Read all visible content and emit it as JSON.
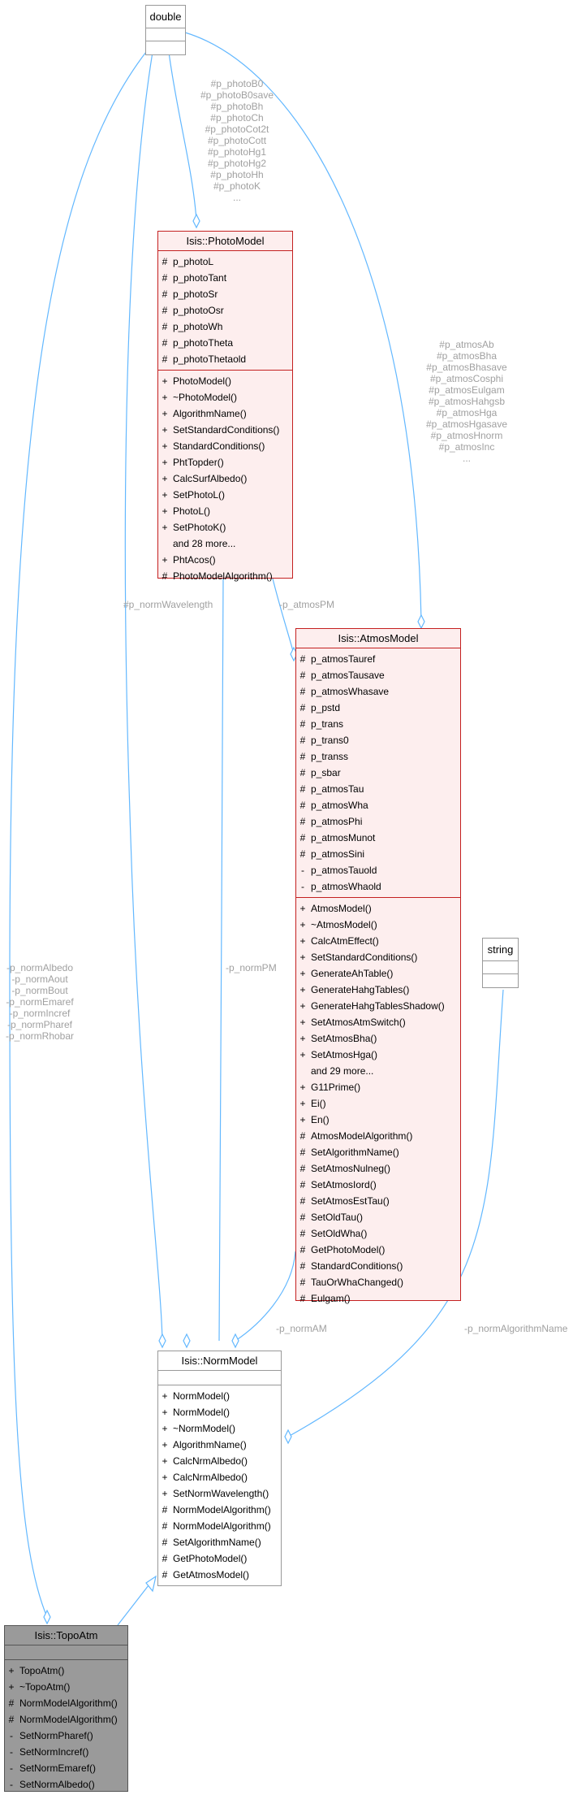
{
  "classes": {
    "double": {
      "name": "double"
    },
    "string": {
      "name": "string"
    },
    "photo": {
      "name": "Isis::PhotoModel",
      "attributes": [
        {
          "v": "#",
          "n": "p_photoL"
        },
        {
          "v": "#",
          "n": "p_photoTant"
        },
        {
          "v": "#",
          "n": "p_photoSr"
        },
        {
          "v": "#",
          "n": "p_photoOsr"
        },
        {
          "v": "#",
          "n": "p_photoWh"
        },
        {
          "v": "#",
          "n": "p_photoTheta"
        },
        {
          "v": "#",
          "n": "p_photoThetaold"
        }
      ],
      "methods": [
        {
          "v": "+",
          "n": "PhotoModel()"
        },
        {
          "v": "+",
          "n": "~PhotoModel()"
        },
        {
          "v": "+",
          "n": "AlgorithmName()"
        },
        {
          "v": "+",
          "n": "SetStandardConditions()"
        },
        {
          "v": "+",
          "n": "StandardConditions()"
        },
        {
          "v": "+",
          "n": "PhtTopder()"
        },
        {
          "v": "+",
          "n": "CalcSurfAlbedo()"
        },
        {
          "v": "+",
          "n": "SetPhotoL()"
        },
        {
          "v": "+",
          "n": "PhotoL()"
        },
        {
          "v": "+",
          "n": "SetPhotoK()"
        },
        {
          "v": "",
          "n": "and 28 more..."
        },
        {
          "v": "+",
          "n": "PhtAcos()"
        },
        {
          "v": "#",
          "n": "PhotoModelAlgorithm()"
        }
      ]
    },
    "atmos": {
      "name": "Isis::AtmosModel",
      "attributes": [
        {
          "v": "#",
          "n": "p_atmosTauref"
        },
        {
          "v": "#",
          "n": "p_atmosTausave"
        },
        {
          "v": "#",
          "n": "p_atmosWhasave"
        },
        {
          "v": "#",
          "n": "p_pstd"
        },
        {
          "v": "#",
          "n": "p_trans"
        },
        {
          "v": "#",
          "n": "p_trans0"
        },
        {
          "v": "#",
          "n": "p_transs"
        },
        {
          "v": "#",
          "n": "p_sbar"
        },
        {
          "v": "#",
          "n": "p_atmosTau"
        },
        {
          "v": "#",
          "n": "p_atmosWha"
        },
        {
          "v": "#",
          "n": "p_atmosPhi"
        },
        {
          "v": "#",
          "n": "p_atmosMunot"
        },
        {
          "v": "#",
          "n": "p_atmosSini"
        },
        {
          "v": "-",
          "n": "p_atmosTauold"
        },
        {
          "v": "-",
          "n": "p_atmosWhaold"
        }
      ],
      "methods": [
        {
          "v": "+",
          "n": "AtmosModel()"
        },
        {
          "v": "+",
          "n": "~AtmosModel()"
        },
        {
          "v": "+",
          "n": "CalcAtmEffect()"
        },
        {
          "v": "+",
          "n": "SetStandardConditions()"
        },
        {
          "v": "+",
          "n": "GenerateAhTable()"
        },
        {
          "v": "+",
          "n": "GenerateHahgTables()"
        },
        {
          "v": "+",
          "n": "GenerateHahgTablesShadow()"
        },
        {
          "v": "+",
          "n": "SetAtmosAtmSwitch()"
        },
        {
          "v": "+",
          "n": "SetAtmosBha()"
        },
        {
          "v": "+",
          "n": "SetAtmosHga()"
        },
        {
          "v": "",
          "n": "and 29 more..."
        },
        {
          "v": "+",
          "n": "G11Prime()"
        },
        {
          "v": "+",
          "n": "Ei()"
        },
        {
          "v": "+",
          "n": "En()"
        },
        {
          "v": "#",
          "n": "AtmosModelAlgorithm()"
        },
        {
          "v": "#",
          "n": "SetAlgorithmName()"
        },
        {
          "v": "#",
          "n": "SetAtmosNulneg()"
        },
        {
          "v": "#",
          "n": "SetAtmosIord()"
        },
        {
          "v": "#",
          "n": "SetAtmosEstTau()"
        },
        {
          "v": "#",
          "n": "SetOldTau()"
        },
        {
          "v": "#",
          "n": "SetOldWha()"
        },
        {
          "v": "#",
          "n": "GetPhotoModel()"
        },
        {
          "v": "#",
          "n": "StandardConditions()"
        },
        {
          "v": "#",
          "n": "TauOrWhaChanged()"
        },
        {
          "v": "#",
          "n": "Eulgam()"
        }
      ]
    },
    "norm": {
      "name": "Isis::NormModel",
      "methods": [
        {
          "v": "+",
          "n": "NormModel()"
        },
        {
          "v": "+",
          "n": "NormModel()"
        },
        {
          "v": "+",
          "n": "~NormModel()"
        },
        {
          "v": "+",
          "n": "AlgorithmName()"
        },
        {
          "v": "+",
          "n": "CalcNrmAlbedo()"
        },
        {
          "v": "+",
          "n": "CalcNrmAlbedo()"
        },
        {
          "v": "+",
          "n": "SetNormWavelength()"
        },
        {
          "v": "#",
          "n": "NormModelAlgorithm()"
        },
        {
          "v": "#",
          "n": "NormModelAlgorithm()"
        },
        {
          "v": "#",
          "n": "SetAlgorithmName()"
        },
        {
          "v": "#",
          "n": "GetPhotoModel()"
        },
        {
          "v": "#",
          "n": "GetAtmosModel()"
        }
      ]
    },
    "topo": {
      "name": "Isis::TopoAtm",
      "methods": [
        {
          "v": "+",
          "n": "TopoAtm()"
        },
        {
          "v": "+",
          "n": "~TopoAtm()"
        },
        {
          "v": "#",
          "n": "NormModelAlgorithm()"
        },
        {
          "v": "#",
          "n": "NormModelAlgorithm()"
        },
        {
          "v": "-",
          "n": "SetNormPharef()"
        },
        {
          "v": "-",
          "n": "SetNormIncref()"
        },
        {
          "v": "-",
          "n": "SetNormEmaref()"
        },
        {
          "v": "-",
          "n": "SetNormAlbedo()"
        }
      ]
    }
  },
  "edge_labels": {
    "photo_members": [
      "#p_photoB0",
      "#p_photoB0save",
      "#p_photoBh",
      "#p_photoCh",
      "#p_photoCot2t",
      "#p_photoCott",
      "#p_photoHg1",
      "#p_photoHg2",
      "#p_photoHh",
      "#p_photoK",
      "..."
    ],
    "atmos_members": [
      "#p_atmosAb",
      "#p_atmosBha",
      "#p_atmosBhasave",
      "#p_atmosCosphi",
      "#p_atmosEulgam",
      "#p_atmosHahgsb",
      "#p_atmosHga",
      "#p_atmosHgasave",
      "#p_atmosHnorm",
      "#p_atmosInc",
      "..."
    ],
    "topo_members": [
      "-p_normAlbedo",
      "-p_normAout",
      "-p_normBout",
      "-p_normEmaref",
      "-p_normIncref",
      "-p_normPharef",
      "-p_normRhobar"
    ],
    "norm_wavelength": "#p_normWavelength",
    "atmos_pm": "-p_atmosPM",
    "norm_pm": "-p_normPM",
    "norm_am": "-p_normAM",
    "norm_algorithm_name": "-p_normAlgorithmName"
  },
  "colors": {
    "edge": "#63b8ff",
    "label": "#a0a0a0",
    "highlight_border": "#c42020",
    "highlight_fill": "#fdeeee",
    "focus_fill": "#9a9a9a"
  }
}
